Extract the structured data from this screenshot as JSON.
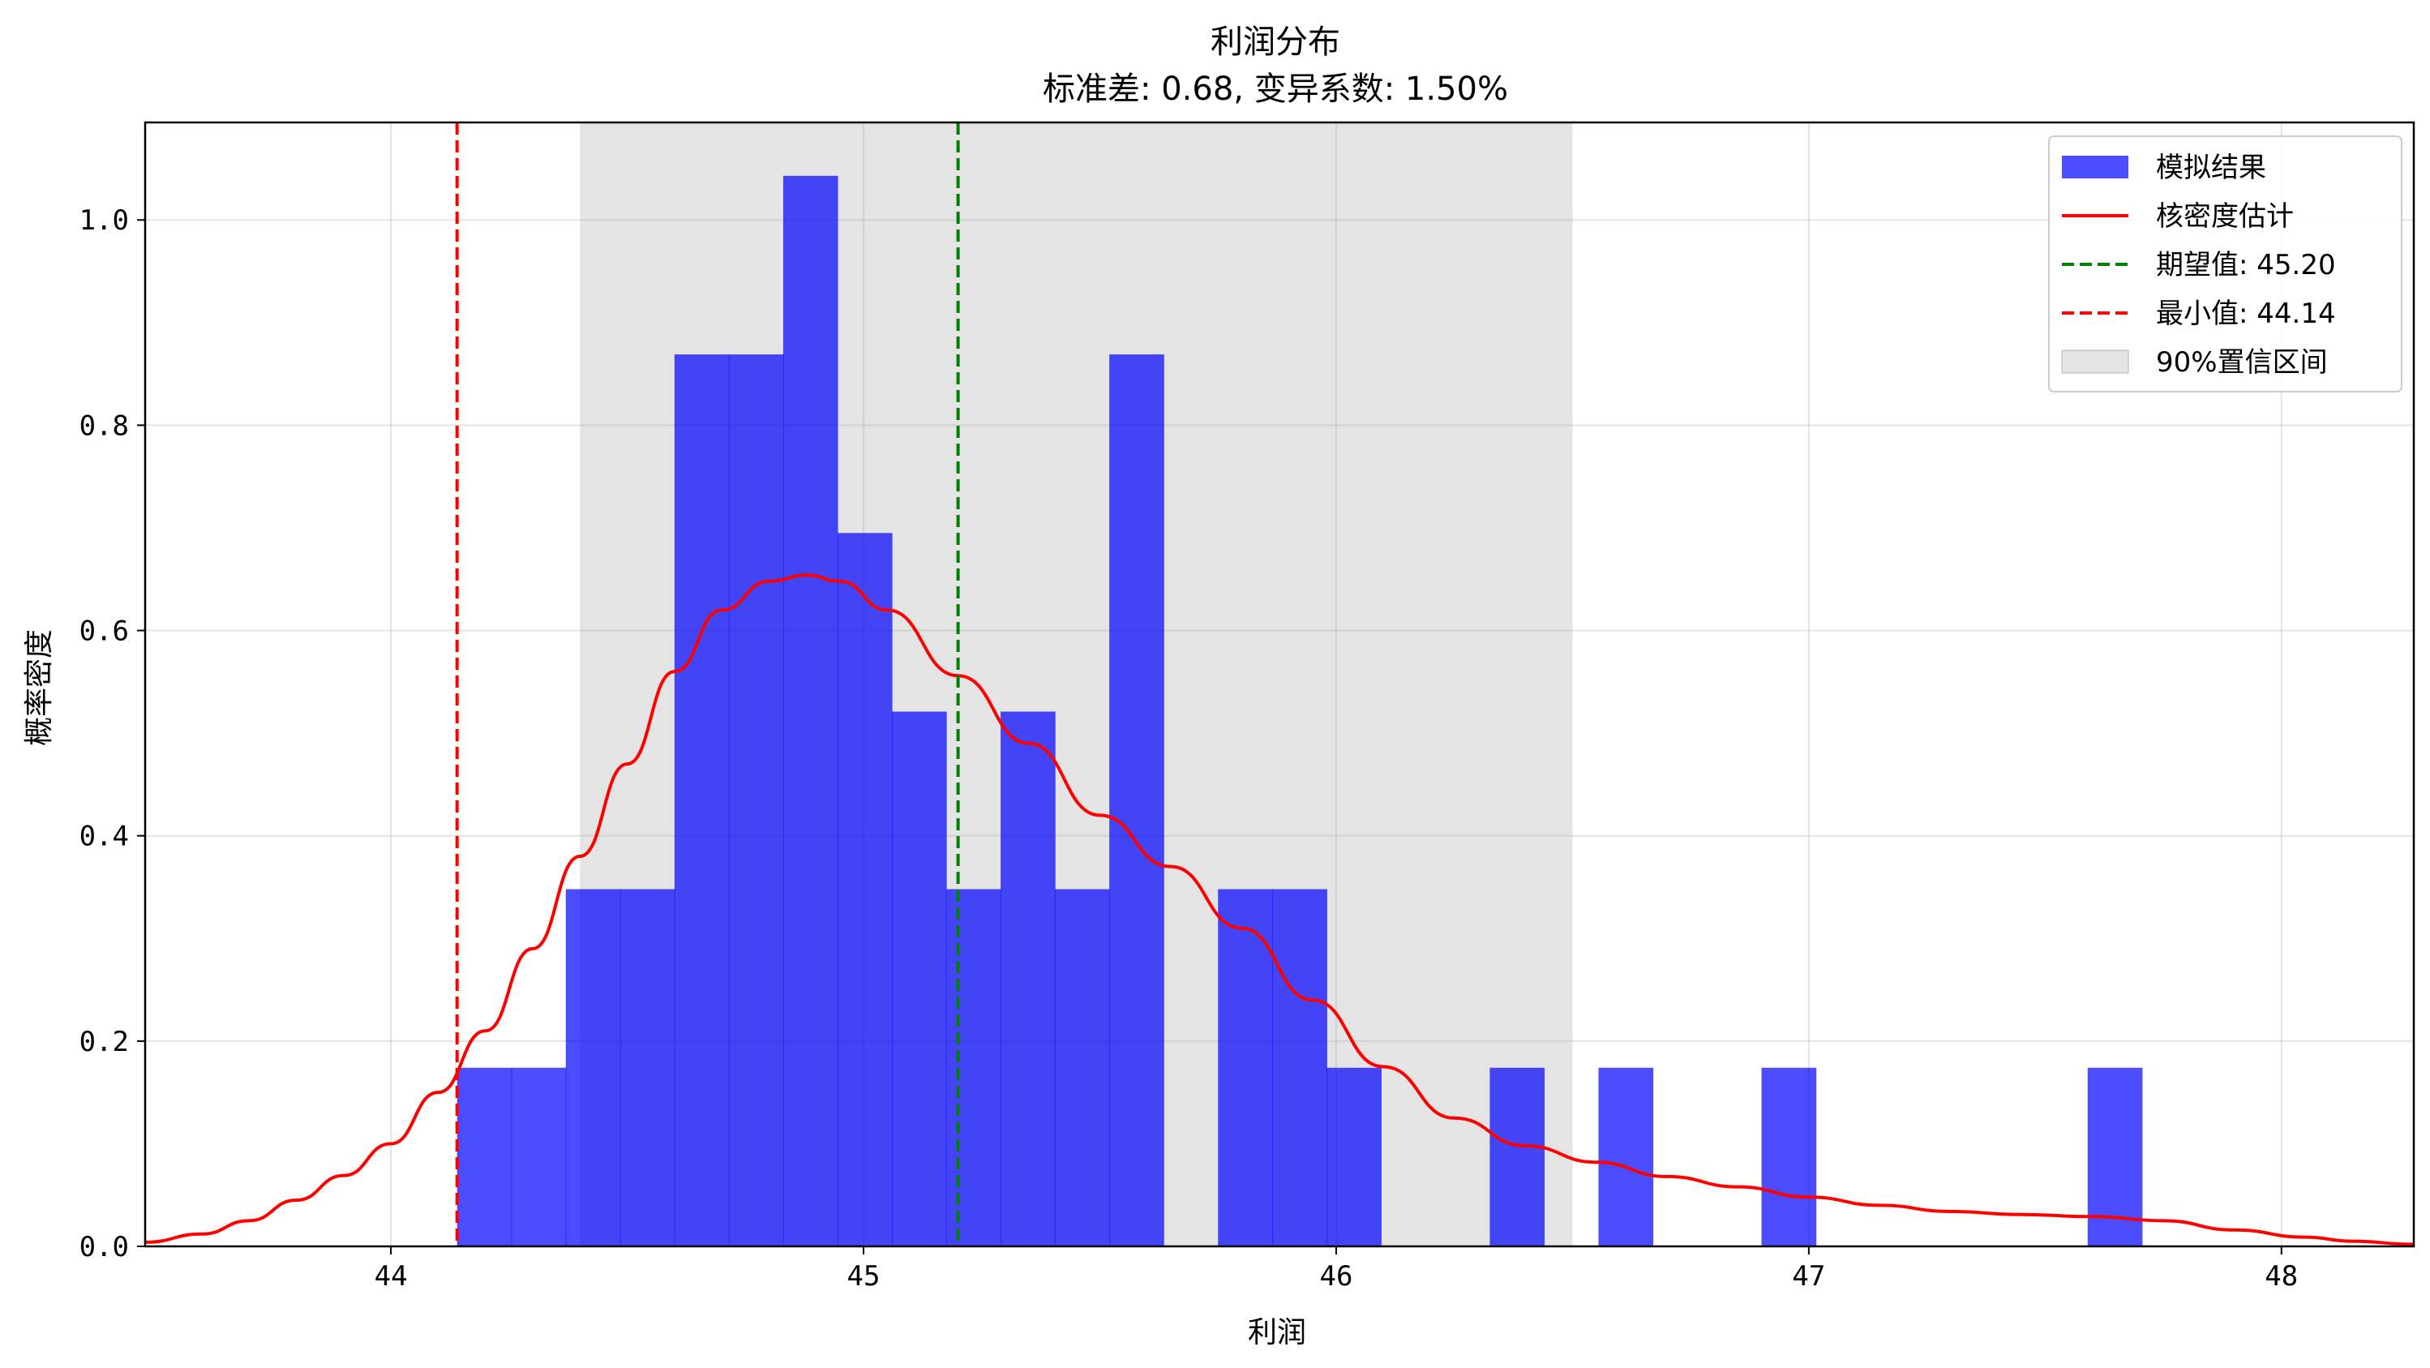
{
  "chart_data": {
    "type": "bar",
    "title": "利润分布",
    "subtitle": "标准差: 0.68, 变异系数: 1.50%",
    "xlabel": "利润",
    "ylabel": "概率密度",
    "xlim": [
      43.48,
      48.28
    ],
    "ylim": [
      0.0,
      1.095
    ],
    "x_ticks": [
      "44",
      "45",
      "46",
      "47",
      "48"
    ],
    "x_tick_values": [
      44,
      45,
      46,
      47,
      48
    ],
    "y_ticks": [
      "0.0",
      "0.2",
      "0.4",
      "0.6",
      "0.8",
      "1.0"
    ],
    "y_tick_values": [
      0.0,
      0.2,
      0.4,
      0.6,
      0.8,
      1.0
    ],
    "grid": true,
    "legend_position": "top-right",
    "histogram": {
      "name": "模拟结果",
      "color": "#0000ff",
      "opacity": 0.7,
      "bin_start": 44.14,
      "bin_width": 0.115,
      "densities": [
        0.174,
        0.174,
        0.348,
        0.348,
        0.869,
        0.869,
        1.043,
        0.695,
        0.521,
        0.348,
        0.521,
        0.348,
        0.869,
        0,
        0.348,
        0.348,
        0.174,
        0,
        0,
        0.174,
        0,
        0.174,
        0,
        0,
        0.174,
        0,
        0,
        0,
        0,
        0,
        0.174
      ]
    },
    "kde": {
      "name": "核密度估计",
      "color": "#ff0000",
      "x": [
        43.48,
        43.6,
        43.7,
        43.8,
        43.9,
        44.0,
        44.1,
        44.2,
        44.3,
        44.4,
        44.5,
        44.6,
        44.7,
        44.8,
        44.88,
        44.95,
        45.05,
        45.2,
        45.35,
        45.5,
        45.65,
        45.8,
        45.95,
        46.1,
        46.25,
        46.4,
        46.55,
        46.7,
        46.85,
        47.0,
        47.15,
        47.3,
        47.45,
        47.6,
        47.75,
        47.9,
        48.05,
        48.15,
        48.28
      ],
      "y": [
        0.004,
        0.012,
        0.025,
        0.045,
        0.069,
        0.1,
        0.15,
        0.21,
        0.29,
        0.38,
        0.47,
        0.56,
        0.62,
        0.648,
        0.654,
        0.648,
        0.62,
        0.556,
        0.49,
        0.42,
        0.37,
        0.31,
        0.24,
        0.175,
        0.125,
        0.098,
        0.082,
        0.068,
        0.058,
        0.048,
        0.04,
        0.034,
        0.031,
        0.029,
        0.025,
        0.016,
        0.009,
        0.005,
        0.002
      ]
    },
    "lines": [
      {
        "name": "期望值: 45.20",
        "x": 45.2,
        "color": "#008000",
        "style": "dashed"
      },
      {
        "name": "最小值: 44.14",
        "x": 44.14,
        "color": "#ff0000",
        "style": "dashed"
      }
    ],
    "interval": {
      "name": "90%置信区间",
      "x_start": 44.4,
      "x_end": 46.5,
      "color": "#b3b3b3",
      "opacity": 0.35
    }
  }
}
